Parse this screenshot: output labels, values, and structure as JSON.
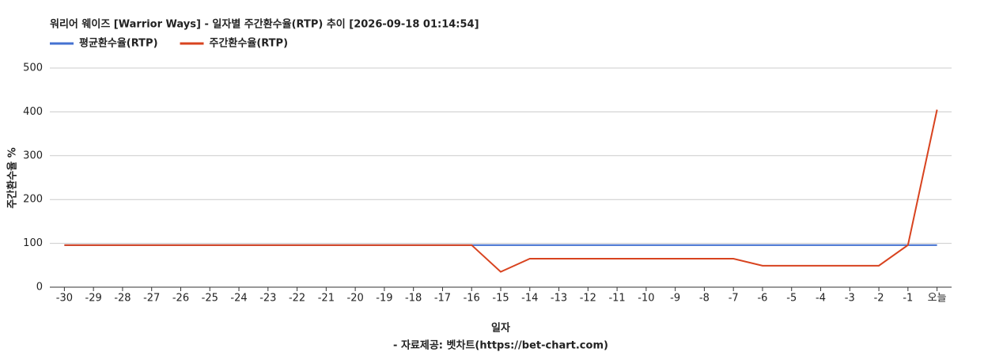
{
  "chart_data": {
    "type": "line",
    "title": "워리어 웨이즈 [Warrior Ways] - 일자별 주간환수율(RTP) 추이 [2026-09-18 01:14:54]",
    "x_label": "일자",
    "y_label": "주간환수율 %",
    "source": "- 자료제공: 벳차트(https://bet-chart.com)",
    "categories": [
      "-30",
      "-29",
      "-28",
      "-27",
      "-26",
      "-25",
      "-24",
      "-23",
      "-22",
      "-21",
      "-20",
      "-19",
      "-18",
      "-17",
      "-16",
      "-15",
      "-14",
      "-13",
      "-12",
      "-11",
      "-10",
      "-9",
      "-8",
      "-7",
      "-6",
      "-5",
      "-4",
      "-3",
      "-2",
      "-1",
      "오늘"
    ],
    "series": [
      {
        "name": "평균환수율(RTP)",
        "color": "#4472d1",
        "values": [
          96,
          96,
          96,
          96,
          96,
          96,
          96,
          96,
          96,
          96,
          96,
          96,
          96,
          96,
          96,
          96,
          96,
          96,
          96,
          96,
          96,
          96,
          96,
          96,
          96,
          96,
          96,
          96,
          96,
          96,
          96
        ]
      },
      {
        "name": "주간환수율(RTP)",
        "color": "#d8431f",
        "values": [
          96,
          96,
          96,
          96,
          96,
          96,
          96,
          96,
          96,
          96,
          96,
          96,
          96,
          96,
          96,
          35,
          65,
          65,
          65,
          65,
          65,
          65,
          65,
          65,
          49,
          49,
          49,
          49,
          49,
          96,
          405
        ]
      }
    ],
    "ylim": [
      0,
      500
    ],
    "yticks": [
      0,
      100,
      200,
      300,
      400,
      500
    ],
    "grid": true,
    "legend": "top-left"
  }
}
